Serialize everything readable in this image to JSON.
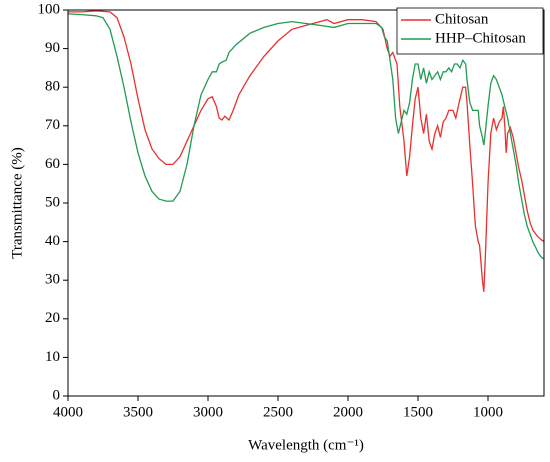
{
  "chart_data": {
    "type": "line",
    "xlabel": "Wavelength (cm⁻¹)",
    "ylabel": "Transmittance (%)",
    "xlim": [
      4000,
      600
    ],
    "ylim": [
      0,
      100
    ],
    "xticks": [
      4000,
      3500,
      3000,
      2500,
      2000,
      1500,
      1000
    ],
    "yticks": [
      0,
      10,
      20,
      30,
      40,
      50,
      60,
      70,
      80,
      90,
      100
    ],
    "legend": "upper right",
    "series": [
      {
        "name": "Chitosan",
        "color": "#e8312e",
        "x": [
          4000,
          3900,
          3800,
          3700,
          3650,
          3600,
          3550,
          3500,
          3450,
          3400,
          3350,
          3300,
          3250,
          3200,
          3150,
          3100,
          3050,
          3000,
          2970,
          2940,
          2920,
          2900,
          2880,
          2850,
          2820,
          2780,
          2700,
          2600,
          2500,
          2400,
          2300,
          2200,
          2150,
          2100,
          2000,
          1900,
          1800,
          1750,
          1720,
          1700,
          1680,
          1650,
          1630,
          1600,
          1580,
          1560,
          1540,
          1520,
          1500,
          1480,
          1460,
          1440,
          1420,
          1400,
          1380,
          1360,
          1340,
          1320,
          1300,
          1280,
          1250,
          1230,
          1200,
          1180,
          1160,
          1150,
          1130,
          1110,
          1090,
          1070,
          1060,
          1040,
          1030,
          1020,
          1000,
          980,
          960,
          940,
          920,
          900,
          890,
          880,
          870,
          860,
          840,
          820,
          800,
          780,
          760,
          740,
          720,
          700,
          680,
          650,
          620,
          600
        ],
        "values": [
          99.5,
          99.5,
          99.8,
          99.5,
          98,
          93,
          86,
          77,
          69,
          64,
          61.5,
          60,
          60,
          62,
          66,
          70,
          74,
          77,
          77.5,
          75,
          72,
          71.5,
          72.5,
          71.5,
          74,
          78,
          83,
          88,
          92,
          95,
          96,
          97,
          97.5,
          96.5,
          97.5,
          97.5,
          97,
          95,
          90,
          88,
          89,
          86,
          75,
          66,
          57,
          62,
          70,
          77,
          80,
          72,
          68,
          73,
          66,
          64,
          68,
          70,
          67,
          71,
          72,
          74,
          74,
          72,
          77,
          80,
          80,
          76,
          65,
          55,
          44,
          40,
          39,
          30,
          27,
          35,
          55,
          68,
          72,
          69,
          71,
          72,
          75,
          70,
          63,
          68,
          69.5,
          67,
          63,
          59,
          56,
          52,
          48,
          45,
          43,
          41.5,
          40.5,
          40
        ]
      },
      {
        "name": "HHP–Chitosan",
        "color": "#239a52",
        "x": [
          4000,
          3900,
          3800,
          3750,
          3700,
          3650,
          3600,
          3550,
          3500,
          3450,
          3400,
          3350,
          3300,
          3250,
          3200,
          3150,
          3100,
          3050,
          3000,
          2970,
          2940,
          2920,
          2900,
          2870,
          2850,
          2800,
          2700,
          2600,
          2500,
          2400,
          2300,
          2200,
          2100,
          2000,
          1900,
          1800,
          1760,
          1740,
          1720,
          1700,
          1680,
          1660,
          1640,
          1620,
          1600,
          1580,
          1560,
          1540,
          1520,
          1500,
          1480,
          1460,
          1440,
          1420,
          1400,
          1380,
          1360,
          1340,
          1320,
          1300,
          1280,
          1260,
          1240,
          1220,
          1200,
          1180,
          1160,
          1150,
          1130,
          1110,
          1090,
          1070,
          1060,
          1040,
          1030,
          1020,
          1000,
          980,
          960,
          940,
          920,
          900,
          880,
          860,
          840,
          820,
          800,
          780,
          760,
          740,
          720,
          700,
          680,
          660,
          640,
          620,
          600
        ],
        "values": [
          99,
          98.8,
          98.5,
          98,
          95,
          88,
          80,
          71,
          63,
          57,
          53,
          51,
          50.5,
          50.5,
          53,
          60,
          70,
          78,
          82,
          84,
          84,
          86,
          86.5,
          87,
          89,
          91,
          94,
          95.5,
          96.5,
          97,
          96.5,
          96,
          95.5,
          96.5,
          96.5,
          96.5,
          95.5,
          93,
          92,
          87,
          82,
          72,
          68,
          71,
          74,
          73,
          76,
          82,
          86,
          86,
          82,
          85,
          81,
          84,
          82,
          83,
          84,
          82,
          84,
          84,
          85,
          84,
          86,
          86,
          85,
          87,
          86,
          82,
          76,
          74,
          74,
          74,
          70,
          67,
          65,
          68,
          75,
          81,
          83,
          82,
          80,
          78,
          75,
          72,
          68,
          64,
          60,
          55,
          51,
          47,
          44,
          42,
          40,
          38.5,
          37,
          36,
          35.5
        ]
      }
    ]
  }
}
